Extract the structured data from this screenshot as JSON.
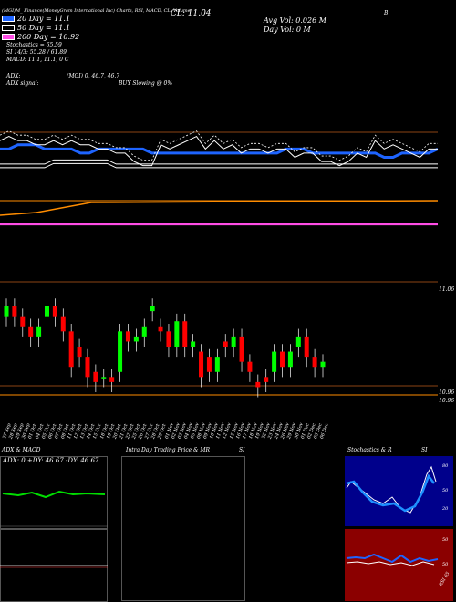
{
  "header": {
    "topline": "(MGI)M_ Finance(MoneyGram International Inc) Charts, RSI, MACD, CL, Volume",
    "cl": "CL: 11.04",
    "avg_vol": "Avg Vol: 0.026  M",
    "day_vol": "Day Vol: 0  M",
    "b_label": "B",
    "s_label": "S"
  },
  "legend": {
    "items": [
      {
        "label": "20 Day = 11.1",
        "color": "#1e64ff"
      },
      {
        "label": "50 Day = 11.1",
        "color": "#ffffff"
      },
      {
        "label": "200 Day = 10.92",
        "color": "#ff4de6"
      }
    ],
    "stochastics": "Stochastics = 65.59",
    "si": "SI 14/3: 55.28 / 61.89",
    "macd": "MACD: 11.1, 11.1, 0  C",
    "adx": "ADX:",
    "adx_vals": "(MGI) 0, 46.7, 46.7",
    "adx_signal": "ADX signal:",
    "buy_slowing": "BUY Slowing @ 0%"
  },
  "price_axis": {
    "label1": "11.06",
    "label2": "10.96",
    "label3": "10.96"
  },
  "dates": [
    "27 Sep",
    "28 Sep",
    "29 Sep",
    "30 Sep",
    "01 Oct",
    "04 Oct",
    "05 Oct",
    "06 Oct",
    "07 Oct",
    "08 Oct",
    "11 Oct",
    "12 Oct",
    "13 Oct",
    "14 Oct",
    "15 Oct",
    "18 Oct",
    "19 Oct",
    "20 Oct",
    "21 Oct",
    "22 Oct",
    "25 Oct",
    "26 Oct",
    "27 Oct",
    "28 Oct",
    "29 Oct",
    "01 Nov",
    "02 Nov",
    "03 Nov",
    "04 Nov",
    "05 Nov",
    "08 Nov",
    "09 Nov",
    "10 Nov",
    "11 Nov",
    "12 Nov",
    "15 Nov",
    "16 Nov",
    "17 Nov",
    "18 Nov",
    "19 Nov",
    "22 Nov",
    "23 Nov",
    "24 Nov",
    "26 Nov",
    "29 Nov",
    "30 Nov",
    "01 Dec",
    "02 Dec",
    "03 Dec",
    "06 Dec"
  ],
  "panels": {
    "adx_title": "ADX  & MACD",
    "adx_values": "ADX: 0  +DY: 46.67  -DY: 46.67",
    "intra_title": "Intra  Day Trading Price  & MR",
    "intra_si": "SI",
    "stoch_title": "Stochastics & R",
    "stoch_si": "SI",
    "stoch_ticks": [
      "80",
      "50",
      "20"
    ],
    "rsi_ticks": [
      "50",
      "50"
    ],
    "rsi_label": "RSI 65"
  },
  "colors": {
    "up": "#00ff00",
    "down": "#ff0000",
    "ma20": "#1e64ff",
    "ma200": "#ff4de6",
    "orange": "#ff8c00",
    "grid": "#8b4513",
    "panel_red": "#8b0000",
    "panel_blue": "#00008b"
  },
  "chart_data": {
    "type": "line",
    "x": [
      "27 Sep",
      "28 Sep",
      "29 Sep",
      "30 Sep",
      "01 Oct",
      "04 Oct",
      "05 Oct",
      "06 Oct",
      "07 Oct",
      "08 Oct",
      "11 Oct",
      "12 Oct",
      "13 Oct",
      "14 Oct",
      "15 Oct",
      "18 Oct",
      "19 Oct",
      "20 Oct",
      "21 Oct",
      "22 Oct",
      "25 Oct",
      "26 Oct",
      "27 Oct",
      "28 Oct",
      "29 Oct",
      "01 Nov",
      "02 Nov",
      "03 Nov",
      "04 Nov",
      "05 Nov",
      "08 Nov",
      "09 Nov",
      "10 Nov",
      "11 Nov",
      "12 Nov",
      "15 Nov",
      "16 Nov",
      "17 Nov",
      "18 Nov",
      "19 Nov",
      "22 Nov",
      "23 Nov",
      "24 Nov",
      "26 Nov",
      "29 Nov",
      "30 Nov",
      "01 Dec",
      "02 Dec",
      "03 Dec",
      "06 Dec"
    ],
    "series": [
      {
        "name": "20 Day",
        "values": [
          11.1,
          11.1,
          11.11,
          11.11,
          11.11,
          11.1,
          11.1,
          11.1,
          11.1,
          11.09,
          11.09,
          11.1,
          11.1,
          11.1,
          11.1,
          11.1,
          11.1,
          11.09,
          11.09,
          11.09,
          11.09,
          11.09,
          11.09,
          11.09,
          11.09,
          11.09,
          11.09,
          11.09,
          11.09,
          11.09,
          11.09,
          11.09,
          11.1,
          11.1,
          11.1,
          11.09,
          11.09,
          11.09,
          11.09,
          11.09,
          11.09,
          11.09,
          11.09,
          11.08,
          11.08,
          11.09,
          11.09,
          11.09,
          11.09,
          11.1
        ]
      },
      {
        "name": "50 Day",
        "values": [
          11.09,
          11.09,
          11.09,
          11.09,
          11.09,
          11.09,
          11.1,
          11.1,
          11.1,
          11.1,
          11.1,
          11.1,
          11.1,
          11.09,
          11.09,
          11.09,
          11.09,
          11.09,
          11.09,
          11.09,
          11.09,
          11.09,
          11.09,
          11.09,
          11.09,
          11.09,
          11.09,
          11.09,
          11.09,
          11.09,
          11.09,
          11.09,
          11.09,
          11.09,
          11.09,
          11.09,
          11.09,
          11.09,
          11.09,
          11.09,
          11.09,
          11.09,
          11.09,
          11.09,
          11.09,
          11.09,
          11.09,
          11.09,
          11.09,
          11.09
        ]
      },
      {
        "name": "200 Day",
        "values": [
          10.92,
          10.92,
          10.92,
          10.92,
          10.92,
          10.92,
          10.92,
          10.92,
          10.92,
          10.92,
          10.92,
          10.92,
          10.92,
          10.92,
          10.92,
          10.92,
          10.92,
          10.92,
          10.92,
          10.92,
          10.92,
          10.92,
          10.92,
          10.92,
          10.92,
          10.92,
          10.92,
          10.92,
          10.92,
          10.92,
          10.92,
          10.92,
          10.92,
          10.92,
          10.92,
          10.92,
          10.92,
          10.92,
          10.92,
          10.92,
          10.92,
          10.92,
          10.92,
          10.92,
          10.92,
          10.92,
          10.92,
          10.92,
          10.92,
          10.92
        ]
      },
      {
        "name": "Close",
        "values": [
          11.12,
          11.13,
          11.12,
          11.12,
          11.11,
          11.11,
          11.12,
          11.11,
          11.12,
          11.11,
          11.11,
          11.1,
          11.1,
          11.09,
          11.09,
          11.07,
          11.06,
          11.06,
          11.11,
          11.1,
          11.11,
          11.12,
          11.13,
          11.1,
          11.12,
          11.1,
          11.11,
          11.09,
          11.1,
          11.1,
          11.09,
          11.1,
          11.1,
          11.08,
          11.09,
          11.09,
          11.07,
          11.07,
          11.06,
          11.07,
          11.09,
          11.08,
          11.12,
          11.1,
          11.11,
          11.1,
          11.09,
          11.08,
          11.1,
          11.1
        ]
      }
    ],
    "candles": [
      {
        "o": 11.1,
        "c": 11.12
      },
      {
        "o": 11.12,
        "c": 11.1
      },
      {
        "o": 11.1,
        "c": 11.08
      },
      {
        "o": 11.08,
        "c": 11.06
      },
      {
        "o": 11.06,
        "c": 11.08
      },
      {
        "o": 11.1,
        "c": 11.12
      },
      {
        "o": 11.12,
        "c": 11.1
      },
      {
        "o": 11.1,
        "c": 11.07
      },
      {
        "o": 11.07,
        "c": 11.0
      },
      {
        "o": 11.04,
        "c": 11.02
      },
      {
        "o": 11.02,
        "c": 10.98
      },
      {
        "o": 10.99,
        "c": 10.97
      },
      {
        "o": 10.98,
        "c": 10.98
      },
      {
        "o": 10.98,
        "c": 10.97
      },
      {
        "o": 10.99,
        "c": 11.07
      },
      {
        "o": 11.07,
        "c": 11.05
      },
      {
        "o": 11.05,
        "c": 11.06
      },
      {
        "o": 11.06,
        "c": 11.08
      },
      {
        "o": 11.11,
        "c": 11.12
      },
      {
        "o": 11.08,
        "c": 11.07
      },
      {
        "o": 11.07,
        "c": 11.04
      },
      {
        "o": 11.04,
        "c": 11.09
      },
      {
        "o": 11.09,
        "c": 11.04
      },
      {
        "o": 11.04,
        "c": 11.05
      },
      {
        "o": 11.03,
        "c": 10.98
      },
      {
        "o": 11.02,
        "c": 10.99
      },
      {
        "o": 10.99,
        "c": 11.02
      },
      {
        "o": 11.05,
        "c": 11.04
      },
      {
        "o": 11.04,
        "c": 11.06
      },
      {
        "o": 11.06,
        "c": 11.01
      },
      {
        "o": 11.01,
        "c": 10.99
      },
      {
        "o": 10.97,
        "c": 10.96
      },
      {
        "o": 10.98,
        "c": 10.97
      },
      {
        "o": 10.99,
        "c": 11.03
      },
      {
        "o": 11.03,
        "c": 11.0
      },
      {
        "o": 11.0,
        "c": 11.03
      },
      {
        "o": 11.04,
        "c": 11.06
      },
      {
        "o": 11.06,
        "c": 11.02
      },
      {
        "o": 11.02,
        "c": 11.0
      },
      {
        "o": 11.0,
        "c": 11.01
      }
    ],
    "ylabel": "",
    "xlabel": ""
  }
}
